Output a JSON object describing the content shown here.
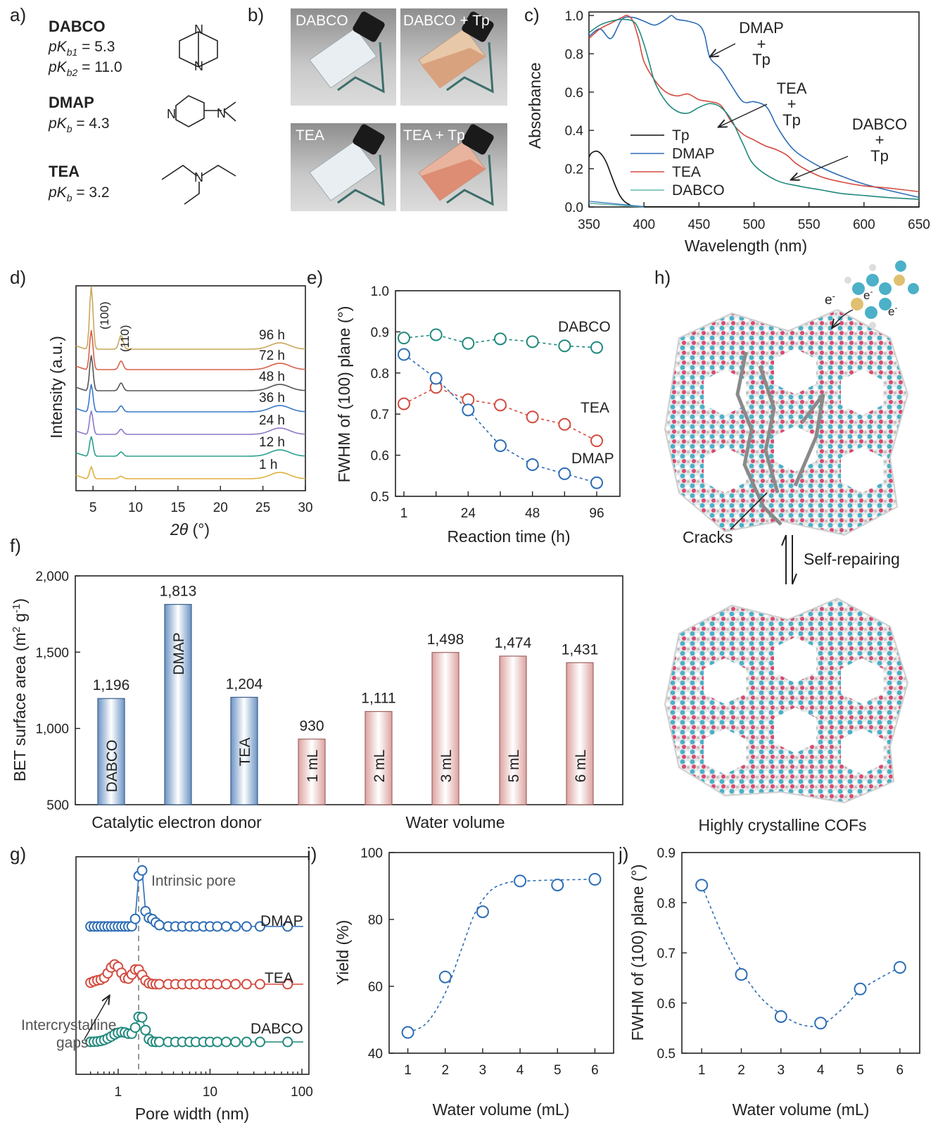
{
  "panels": {
    "a": "a)",
    "b": "b)",
    "c": "c)",
    "d": "d)",
    "e": "e)",
    "f": "f)",
    "g": "g)",
    "h": "h)",
    "i": "i)",
    "j": "j)"
  },
  "colors": {
    "dmap": "#2d6db5",
    "tea": "#d34b3f",
    "dabco": "#21897d",
    "tp": "#111111",
    "xrd": [
      "#c9a85a",
      "#d9604a",
      "#555555",
      "#3a78c9",
      "#8e78c9",
      "#2aa08f",
      "#e0b040"
    ]
  },
  "panel_a": {
    "items": [
      {
        "name": "DABCO",
        "pk_lines": [
          [
            "pK",
            "b1",
            " = 5.3"
          ],
          [
            "pK",
            "b2",
            " = 11.0"
          ]
        ]
      },
      {
        "name": "DMAP",
        "pk_lines": [
          [
            "pK",
            "b",
            " = 4.3"
          ]
        ]
      },
      {
        "name": "TEA",
        "pk_lines": [
          [
            "pK",
            "b",
            " = 3.2"
          ]
        ]
      }
    ],
    "atom_label": "N"
  },
  "panel_b": {
    "photos": [
      "DABCO",
      "DABCO + Tp",
      "TEA",
      "TEA + Tp"
    ]
  },
  "chart_data": [
    {
      "id": "c",
      "type": "line",
      "xlabel": "Wavelength (nm)",
      "ylabel": "Absorbance",
      "xlim": [
        350,
        650
      ],
      "ylim": [
        0,
        1.0
      ],
      "xticks": [
        350,
        400,
        450,
        500,
        550,
        600,
        650
      ],
      "yticks": [
        "0.0",
        "0.2",
        "0.4",
        "0.6",
        "0.8",
        "1.0"
      ],
      "legend": [
        "Tp",
        "DMAP",
        "TEA",
        "DABCO"
      ],
      "annotations": [
        [
          "DMAP",
          "+",
          "Tp"
        ],
        [
          "TEA",
          "+",
          "Tp"
        ],
        [
          "DABCO",
          "+",
          "Tp"
        ]
      ],
      "series": [
        {
          "name": "Tp",
          "color": "#111111",
          "x": [
            350,
            352,
            355,
            358,
            362,
            366,
            370,
            374,
            378,
            382,
            386,
            390,
            400,
            420,
            650
          ],
          "y": [
            0.26,
            0.28,
            0.29,
            0.29,
            0.27,
            0.23,
            0.17,
            0.11,
            0.06,
            0.03,
            0.015,
            0.005,
            0.002,
            0.001,
            0.0
          ]
        },
        {
          "name": "DMAP",
          "color": "#2d6db5",
          "x": [
            350,
            360,
            370,
            380,
            390,
            400,
            410,
            420,
            425,
            430,
            440,
            450,
            455,
            460,
            470,
            480,
            490,
            500,
            510,
            515,
            520,
            530,
            540,
            560,
            580,
            600,
            620,
            650
          ],
          "y": [
            0.89,
            0.93,
            0.88,
            0.98,
            0.99,
            0.97,
            0.95,
            0.98,
            1.0,
            0.98,
            0.97,
            0.95,
            0.9,
            0.78,
            0.72,
            0.63,
            0.55,
            0.55,
            0.53,
            0.49,
            0.43,
            0.34,
            0.28,
            0.21,
            0.16,
            0.12,
            0.09,
            0.05
          ]
        },
        {
          "name": "TEA",
          "color": "#d34b3f",
          "x": [
            350,
            360,
            370,
            380,
            385,
            390,
            395,
            400,
            410,
            420,
            430,
            440,
            450,
            460,
            470,
            480,
            490,
            500,
            510,
            520,
            530,
            540,
            560,
            580,
            600,
            620,
            650
          ],
          "y": [
            0.88,
            0.93,
            0.96,
            0.99,
            1.0,
            0.97,
            0.88,
            0.76,
            0.66,
            0.6,
            0.58,
            0.59,
            0.56,
            0.55,
            0.53,
            0.44,
            0.38,
            0.35,
            0.32,
            0.3,
            0.27,
            0.22,
            0.16,
            0.13,
            0.11,
            0.1,
            0.08
          ]
        },
        {
          "name": "DABCO",
          "color": "#21897d",
          "x": [
            350,
            360,
            370,
            380,
            390,
            395,
            400,
            405,
            410,
            420,
            430,
            440,
            450,
            460,
            470,
            480,
            490,
            500,
            520,
            540,
            560,
            580,
            600,
            620,
            650
          ],
          "y": [
            0.91,
            0.95,
            0.97,
            0.98,
            0.97,
            0.93,
            0.85,
            0.75,
            0.65,
            0.55,
            0.5,
            0.49,
            0.52,
            0.54,
            0.52,
            0.45,
            0.33,
            0.22,
            0.14,
            0.11,
            0.09,
            0.07,
            0.06,
            0.05,
            0.04
          ]
        }
      ]
    },
    {
      "id": "d",
      "type": "line",
      "xlabel": "2θ (°)",
      "ylabel": "Intensity (a.u.)",
      "xlim": [
        3,
        30
      ],
      "xticks": [
        5,
        10,
        15,
        20,
        25,
        30
      ],
      "series_labels": [
        "96 h",
        "72 h",
        "48 h",
        "36 h",
        "24 h",
        "12 h",
        "1 h"
      ],
      "peak_labels": [
        "(100)",
        "(110)"
      ],
      "peak_heights": [
        3.2,
        2.0,
        1.8,
        1.4,
        1.2,
        1.0,
        0.6
      ],
      "peaks_2theta": [
        4.8,
        8.3,
        27.0
      ]
    },
    {
      "id": "e",
      "type": "line",
      "xlabel": "Reaction time (h)",
      "ylabel": "FWHM of (100) plane (°)",
      "x_categories": [
        "1",
        "",
        "24",
        "",
        "48",
        "",
        "96"
      ],
      "ylim": [
        0.5,
        1.0
      ],
      "yticks": [
        "0.5",
        "0.6",
        "0.7",
        "0.8",
        "0.9",
        "1.0"
      ],
      "series": [
        {
          "name": "DABCO",
          "color": "#21897d",
          "values": [
            0.885,
            0.893,
            0.872,
            0.883,
            0.876,
            0.866,
            0.862
          ]
        },
        {
          "name": "TEA",
          "color": "#d34b3f",
          "values": [
            0.725,
            0.765,
            0.735,
            0.722,
            0.693,
            0.675,
            0.635
          ]
        },
        {
          "name": "DMAP",
          "color": "#2d6db5",
          "values": [
            0.845,
            0.787,
            0.71,
            0.623,
            0.577,
            0.555,
            0.533
          ]
        }
      ]
    },
    {
      "id": "f",
      "type": "bar",
      "ylabel": "BET surface area (m² g⁻¹)",
      "ylim": [
        500,
        2000
      ],
      "yticks": [
        "500",
        "1,000",
        "1,500",
        "2,000"
      ],
      "group_labels": [
        "Catalytic electron donor",
        "Water volume"
      ],
      "categories": [
        "DABCO",
        "DMAP",
        "TEA",
        "1 mL",
        "2 mL",
        "3 mL",
        "5 mL",
        "6 mL"
      ],
      "values": [
        1196,
        1813,
        1204,
        930,
        1111,
        1498,
        1474,
        1431
      ],
      "value_labels": [
        "1,196",
        "1,813",
        "1,204",
        "930",
        "1,111",
        "1,498",
        "1,474",
        "1,431"
      ],
      "groups": [
        "blue",
        "blue",
        "blue",
        "red",
        "red",
        "red",
        "red",
        "red"
      ]
    },
    {
      "id": "g",
      "type": "line",
      "xlabel": "Pore width (nm)",
      "xticks": [
        "1",
        "10",
        "100"
      ],
      "series_labels": [
        "DMAP",
        "TEA",
        "DABCO"
      ],
      "annotations": [
        "Intrinsic pore",
        "Intercrystalline",
        "gaps"
      ],
      "intrinsic_pore_nm": 1.75
    },
    {
      "id": "i",
      "type": "scatter",
      "xlabel": "Water volume (mL)",
      "ylabel": "Yield (%)",
      "xlim": [
        0.5,
        6.5
      ],
      "ylim": [
        40,
        100
      ],
      "xticks": [
        "1",
        "2",
        "3",
        "4",
        "5",
        "6"
      ],
      "yticks": [
        "40",
        "60",
        "80",
        "100"
      ],
      "x": [
        1,
        2,
        3,
        4,
        5,
        6
      ],
      "y": [
        46.2,
        62.8,
        82.3,
        91.5,
        90.3,
        92.0
      ]
    },
    {
      "id": "j",
      "type": "scatter",
      "xlabel": "Water volume (mL)",
      "ylabel": "FWHM of (100) plane (°)",
      "xlim": [
        0.5,
        6.5
      ],
      "ylim": [
        0.5,
        0.9
      ],
      "xticks": [
        "1",
        "2",
        "3",
        "4",
        "5",
        "6"
      ],
      "yticks": [
        "0.5",
        "0.6",
        "0.7",
        "0.8",
        "0.9"
      ],
      "x": [
        1,
        2,
        3,
        4,
        5,
        6
      ],
      "y": [
        0.835,
        0.657,
        0.573,
        0.56,
        0.628,
        0.671
      ]
    }
  ],
  "panel_h": {
    "electron": "e",
    "cracks": "Cracks",
    "self_repairing": "Self-repairing",
    "caption": "Highly crystalline COFs"
  }
}
